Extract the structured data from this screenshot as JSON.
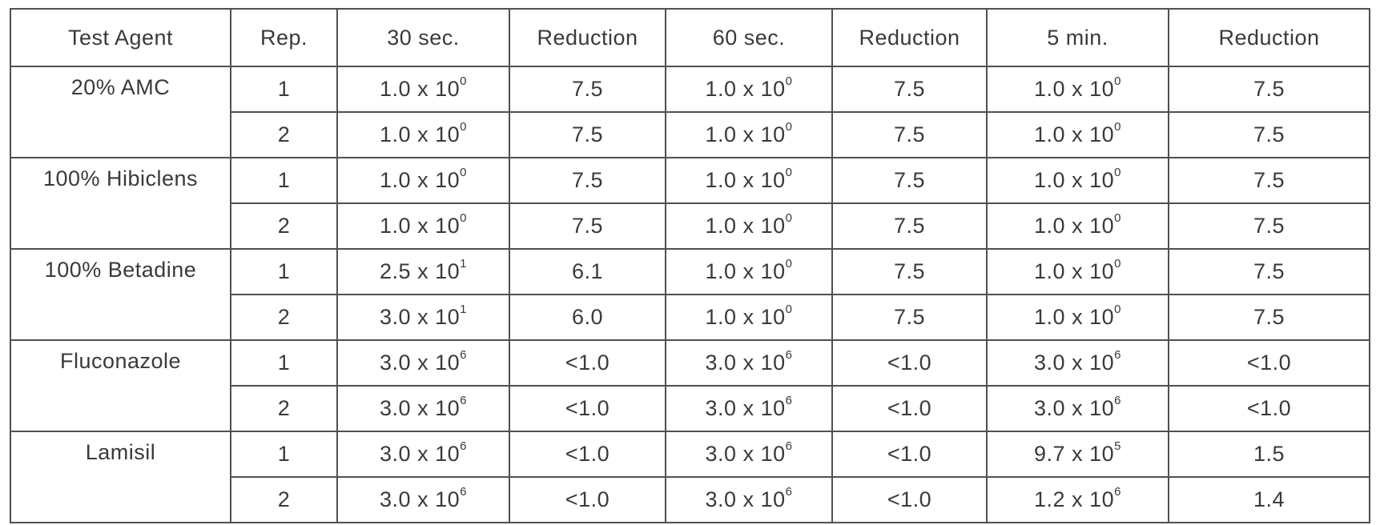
{
  "table": {
    "headers": [
      "Test Agent",
      "Rep.",
      "30 sec.",
      "Reduction",
      "60 sec.",
      "Reduction",
      "5 min.",
      "Reduction"
    ],
    "groups": [
      {
        "agent": "20% AMC",
        "rows": [
          {
            "rep": "1",
            "v30": {
              "mant": "1.0 x 10",
              "exp": "0"
            },
            "r30": "7.5",
            "v60": {
              "mant": "1.0 x 10",
              "exp": "0"
            },
            "r60": "7.5",
            "v5": {
              "mant": "1.0 x 10",
              "exp": "0"
            },
            "r5": "7.5"
          },
          {
            "rep": "2",
            "v30": {
              "mant": "1.0 x 10",
              "exp": "0"
            },
            "r30": "7.5",
            "v60": {
              "mant": "1.0 x 10",
              "exp": "0"
            },
            "r60": "7.5",
            "v5": {
              "mant": "1.0 x 10",
              "exp": "0"
            },
            "r5": "7.5"
          }
        ]
      },
      {
        "agent": "100% Hibiclens",
        "rows": [
          {
            "rep": "1",
            "v30": {
              "mant": "1.0 x 10",
              "exp": "0"
            },
            "r30": "7.5",
            "v60": {
              "mant": "1.0 x 10",
              "exp": "0"
            },
            "r60": "7.5",
            "v5": {
              "mant": "1.0 x 10",
              "exp": "0"
            },
            "r5": "7.5"
          },
          {
            "rep": "2",
            "v30": {
              "mant": "1.0 x 10",
              "exp": "0"
            },
            "r30": "7.5",
            "v60": {
              "mant": "1.0 x 10",
              "exp": "0"
            },
            "r60": "7.5",
            "v5": {
              "mant": "1.0 x 10",
              "exp": "0"
            },
            "r5": "7.5"
          }
        ]
      },
      {
        "agent": "100% Betadine",
        "rows": [
          {
            "rep": "1",
            "v30": {
              "mant": "2.5 x 10",
              "exp": "1"
            },
            "r30": "6.1",
            "v60": {
              "mant": "1.0 x 10",
              "exp": "0"
            },
            "r60": "7.5",
            "v5": {
              "mant": "1.0 x 10",
              "exp": "0"
            },
            "r5": "7.5"
          },
          {
            "rep": "2",
            "v30": {
              "mant": "3.0 x 10",
              "exp": "1"
            },
            "r30": "6.0",
            "v60": {
              "mant": "1.0 x 10",
              "exp": "0"
            },
            "r60": "7.5",
            "v5": {
              "mant": "1.0 x 10",
              "exp": "0"
            },
            "r5": "7.5"
          }
        ]
      },
      {
        "agent": "Fluconazole",
        "rows": [
          {
            "rep": "1",
            "v30": {
              "mant": "3.0 x 10",
              "exp": "6"
            },
            "r30": "<1.0",
            "v60": {
              "mant": "3.0 x 10",
              "exp": "6"
            },
            "r60": "<1.0",
            "v5": {
              "mant": "3.0 x 10",
              "exp": "6"
            },
            "r5": "<1.0"
          },
          {
            "rep": "2",
            "v30": {
              "mant": "3.0 x 10",
              "exp": "6"
            },
            "r30": "<1.0",
            "v60": {
              "mant": "3.0 x 10",
              "exp": "6"
            },
            "r60": "<1.0",
            "v5": {
              "mant": "3.0 x 10",
              "exp": "6"
            },
            "r5": "<1.0"
          }
        ]
      },
      {
        "agent": "Lamisil",
        "rows": [
          {
            "rep": "1",
            "v30": {
              "mant": "3.0 x 10",
              "exp": "6"
            },
            "r30": "<1.0",
            "v60": {
              "mant": "3.0 x 10",
              "exp": "6"
            },
            "r60": "<1.0",
            "v5": {
              "mant": "9.7 x 10",
              "exp": "5"
            },
            "r5": "1.5"
          },
          {
            "rep": "2",
            "v30": {
              "mant": "3.0 x 10",
              "exp": "6"
            },
            "r30": "<1.0",
            "v60": {
              "mant": "3.0 x 10",
              "exp": "6"
            },
            "r60": "<1.0",
            "v5": {
              "mant": "1.2 x 10",
              "exp": "6"
            },
            "r5": "1.4"
          }
        ]
      }
    ]
  }
}
